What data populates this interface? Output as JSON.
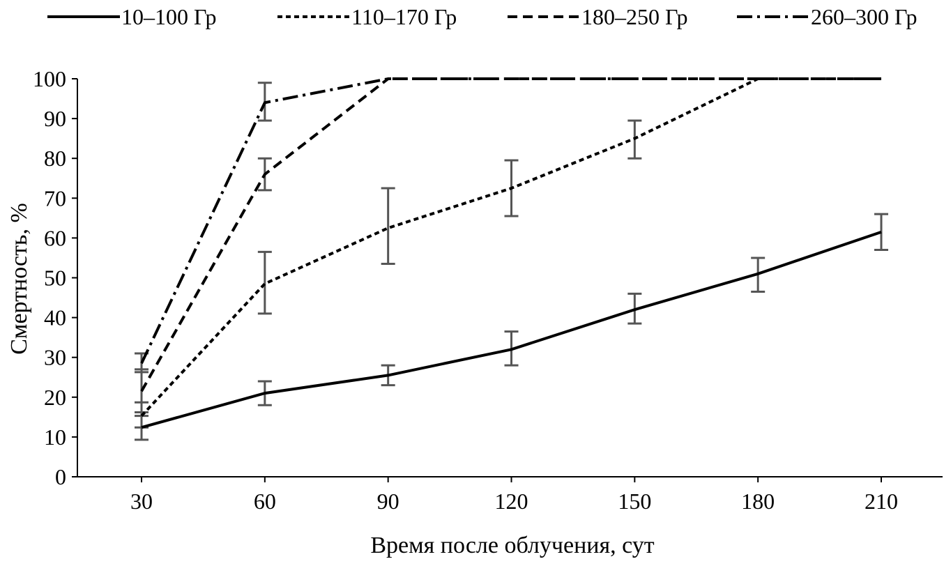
{
  "chart_data": {
    "type": "line",
    "title": "",
    "xlabel": "Время после облучения, сут",
    "ylabel": "Смертность, %",
    "x": [
      30,
      60,
      90,
      120,
      150,
      180,
      210
    ],
    "xlim": [
      5,
      235
    ],
    "ylim": [
      0,
      100
    ],
    "yticks": [
      0,
      10,
      20,
      30,
      40,
      50,
      60,
      70,
      80,
      90,
      100
    ],
    "grid": false,
    "legend_position": "top",
    "series": [
      {
        "name": "10–100 Гр",
        "style": "solid",
        "values": [
          12.4,
          21,
          25.5,
          32,
          42,
          51,
          61.5
        ],
        "errors": [
          [
            9.3,
            15.3
          ],
          [
            18,
            24
          ],
          [
            23,
            28
          ],
          [
            28,
            36.5
          ],
          [
            38.5,
            46
          ],
          [
            46.5,
            55
          ],
          [
            57,
            66
          ]
        ]
      },
      {
        "name": "110–170 Гр",
        "style": "dotted",
        "values": [
          15.3,
          48.5,
          62.5,
          72.5,
          85,
          100,
          100
        ],
        "errors": [
          [
            12.4,
            18.7
          ],
          [
            41,
            56.5
          ],
          [
            53.5,
            72.5
          ],
          [
            65.5,
            79.5
          ],
          [
            80,
            89.5
          ],
          null,
          null
        ]
      },
      {
        "name": "180–250 Гр",
        "style": "dashed",
        "values": [
          21.5,
          76,
          100,
          100,
          100,
          100,
          100
        ],
        "errors": [
          [
            16.2,
            27
          ],
          [
            72,
            80
          ],
          null,
          null,
          null,
          null,
          null
        ]
      },
      {
        "name": "260–300 Гр",
        "style": "dashdot",
        "values": [
          28.5,
          94,
          100,
          100,
          100,
          100,
          100
        ],
        "errors": [
          [
            26.3,
            31
          ],
          [
            89.5,
            99
          ],
          null,
          null,
          null,
          null,
          null
        ]
      }
    ]
  }
}
